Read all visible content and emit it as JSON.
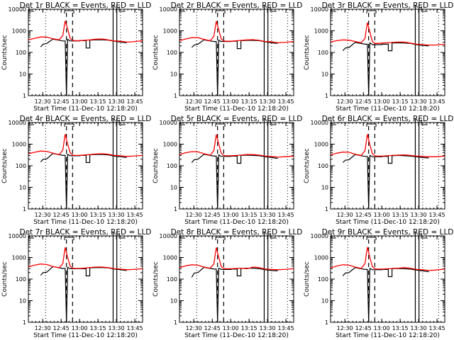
{
  "chart_data": {
    "type": "line",
    "layout": "3x3 grid",
    "shared": {
      "xlabel": "Start Time (11-Dec-10 12:18:20)",
      "ylabel": "Counts/sec",
      "yscale": "log",
      "ylim": [
        1,
        10000
      ],
      "ytick_labels": [
        "1",
        "10",
        "100",
        "1000",
        "10000"
      ],
      "yticks": [
        1,
        10,
        100,
        1000,
        10000
      ],
      "xlim_minutes_after_start": [
        0,
        93
      ],
      "xtick_labels": [
        "12:30",
        "12:45",
        "13:00",
        "13:15",
        "13:30",
        "13:45"
      ],
      "xticks_minutes_after_start": [
        11.67,
        26.67,
        41.67,
        56.67,
        71.67,
        86.67
      ],
      "series_names": [
        "Events",
        "LLD"
      ],
      "series_colors": {
        "Events": "#000000",
        "LLD": "#ff0000"
      },
      "dotted_vlines_min": [
        14,
        75,
        88
      ],
      "dashed_vlines_min": [
        31,
        36
      ],
      "solid_vlines_min": [
        69,
        72
      ]
    },
    "panels": [
      {
        "title": "Det 1r BLACK = Events, RED = LLD",
        "lld": {
          "x": [
            0,
            5,
            10,
            15,
            20,
            25,
            28,
            30,
            32,
            34,
            36,
            38,
            42,
            50,
            55,
            60,
            65,
            70,
            75,
            80,
            85,
            93
          ],
          "y": [
            380,
            450,
            520,
            510,
            430,
            380,
            600,
            2900,
            1200,
            450,
            360,
            350,
            350,
            380,
            410,
            420,
            380,
            340,
            330,
            300,
            310,
            350
          ]
        },
        "events": {
          "x": [
            10,
            12,
            12,
            15,
            15,
            20,
            28,
            30,
            31,
            32,
            34,
            42,
            42,
            47,
            47,
            50,
            50,
            55,
            60,
            65,
            70,
            75,
            80
          ],
          "y": [
            180,
            240,
            240,
            260,
            260,
            410,
            340,
            340,
            0,
            400,
            340,
            340,
            350,
            350,
            160,
            160,
            370,
            380,
            380,
            370,
            330,
            300,
            280
          ]
        }
      },
      {
        "title": "Det 2r BLACK = Events, RED = LLD",
        "lld": {
          "x": [
            0,
            5,
            10,
            15,
            20,
            25,
            28,
            30,
            32,
            34,
            36,
            38,
            42,
            50,
            55,
            60,
            65,
            70,
            75,
            80,
            85,
            93
          ],
          "y": [
            350,
            420,
            480,
            480,
            400,
            350,
            560,
            2800,
            1100,
            420,
            340,
            330,
            330,
            360,
            380,
            390,
            360,
            320,
            310,
            280,
            290,
            320
          ]
        },
        "events": {
          "x": [
            10,
            12,
            12,
            15,
            15,
            20,
            28,
            30,
            31,
            32,
            34,
            42,
            42,
            47,
            47,
            50,
            50,
            55,
            60,
            65,
            70,
            75,
            80
          ],
          "y": [
            170,
            220,
            220,
            240,
            240,
            380,
            320,
            320,
            0,
            370,
            320,
            320,
            330,
            330,
            150,
            150,
            350,
            360,
            360,
            350,
            310,
            280,
            260
          ]
        }
      },
      {
        "title": "Det 3r BLACK = Events, RED = LLD",
        "lld": {
          "x": [
            0,
            5,
            10,
            15,
            20,
            25,
            28,
            30,
            32,
            34,
            36,
            38,
            42,
            50,
            55,
            60,
            65,
            70,
            75,
            80,
            85,
            93
          ],
          "y": [
            300,
            350,
            380,
            370,
            320,
            280,
            450,
            2400,
            900,
            320,
            260,
            260,
            270,
            290,
            300,
            300,
            270,
            240,
            230,
            220,
            220,
            240
          ]
        },
        "events": {
          "x": [
            10,
            12,
            12,
            15,
            15,
            20,
            28,
            30,
            31,
            32,
            34,
            42,
            42,
            47,
            47,
            50,
            50,
            55,
            60,
            65,
            70,
            75,
            80
          ],
          "y": [
            120,
            160,
            160,
            170,
            170,
            290,
            240,
            240,
            0,
            280,
            230,
            230,
            240,
            240,
            120,
            120,
            270,
            280,
            270,
            260,
            230,
            210,
            200
          ]
        }
      },
      {
        "title": "Det 4r BLACK = Events, RED = LLD",
        "lld": {
          "x": [
            0,
            5,
            10,
            15,
            20,
            25,
            28,
            30,
            32,
            34,
            36,
            38,
            42,
            50,
            55,
            60,
            65,
            70,
            75,
            80,
            85,
            93
          ],
          "y": [
            360,
            420,
            480,
            460,
            380,
            330,
            520,
            2900,
            1000,
            400,
            310,
            300,
            300,
            330,
            350,
            360,
            340,
            300,
            290,
            270,
            280,
            300
          ]
        },
        "events": {
          "x": [
            10,
            12,
            12,
            15,
            15,
            20,
            28,
            30,
            31,
            32,
            34,
            42,
            42,
            47,
            47,
            50,
            50,
            55,
            60,
            65,
            70,
            75,
            80
          ],
          "y": [
            150,
            200,
            200,
            210,
            210,
            370,
            300,
            300,
            0,
            340,
            290,
            290,
            300,
            300,
            140,
            140,
            320,
            330,
            330,
            320,
            280,
            260,
            240
          ]
        }
      },
      {
        "title": "Det 5r BLACK = Events, RED = LLD",
        "lld": {
          "x": [
            0,
            5,
            10,
            15,
            20,
            25,
            28,
            30,
            32,
            34,
            36,
            38,
            42,
            50,
            55,
            60,
            65,
            70,
            75,
            80,
            85,
            93
          ],
          "y": [
            330,
            400,
            450,
            440,
            360,
            310,
            500,
            2800,
            1000,
            380,
            300,
            290,
            290,
            310,
            330,
            330,
            310,
            280,
            270,
            250,
            260,
            280
          ]
        },
        "events": {
          "x": [
            10,
            12,
            12,
            15,
            15,
            20,
            28,
            30,
            31,
            32,
            34,
            42,
            42,
            47,
            47,
            50,
            50,
            55,
            60,
            65,
            70,
            75,
            80
          ],
          "y": [
            140,
            190,
            190,
            200,
            200,
            340,
            280,
            280,
            0,
            320,
            270,
            270,
            280,
            280,
            130,
            130,
            300,
            310,
            300,
            290,
            260,
            240,
            220
          ]
        }
      },
      {
        "title": "Det 6r BLACK = Events, RED = LLD",
        "lld": {
          "x": [
            0,
            5,
            10,
            15,
            20,
            25,
            28,
            30,
            32,
            34,
            36,
            38,
            42,
            50,
            55,
            60,
            65,
            70,
            75,
            80,
            85,
            93
          ],
          "y": [
            320,
            380,
            430,
            420,
            340,
            300,
            500,
            2900,
            950,
            360,
            290,
            280,
            280,
            300,
            310,
            320,
            300,
            280,
            270,
            260,
            260,
            280
          ]
        },
        "events": {
          "x": [
            10,
            12,
            12,
            15,
            15,
            20,
            28,
            30,
            31,
            32,
            34,
            42,
            42,
            47,
            47,
            50,
            50,
            55,
            60,
            65,
            70,
            75,
            80
          ],
          "y": [
            140,
            180,
            180,
            190,
            190,
            330,
            270,
            270,
            0,
            300,
            260,
            260,
            270,
            270,
            130,
            130,
            290,
            300,
            290,
            280,
            260,
            240,
            230
          ]
        }
      },
      {
        "title": "Det 7r BLACK = Events, RED = LLD",
        "lld": {
          "x": [
            0,
            5,
            10,
            15,
            20,
            25,
            28,
            30,
            32,
            34,
            36,
            38,
            42,
            50,
            55,
            60,
            65,
            70,
            75,
            80,
            85,
            93
          ],
          "y": [
            370,
            440,
            500,
            470,
            380,
            330,
            520,
            2900,
            1000,
            400,
            320,
            310,
            310,
            340,
            360,
            360,
            340,
            300,
            290,
            270,
            280,
            300
          ]
        },
        "events": {
          "x": [
            10,
            12,
            12,
            15,
            15,
            20,
            28,
            30,
            31,
            32,
            34,
            42,
            42,
            47,
            47,
            50,
            50,
            55,
            60,
            65,
            70,
            75,
            80
          ],
          "y": [
            150,
            200,
            200,
            210,
            210,
            380,
            310,
            310,
            0,
            350,
            300,
            300,
            300,
            300,
            140,
            140,
            330,
            340,
            340,
            330,
            290,
            270,
            250
          ]
        }
      },
      {
        "title": "Det 8r BLACK = Events, RED = LLD",
        "lld": {
          "x": [
            0,
            5,
            10,
            15,
            20,
            25,
            28,
            30,
            32,
            34,
            36,
            38,
            42,
            50,
            55,
            60,
            65,
            70,
            75,
            80,
            85,
            93
          ],
          "y": [
            340,
            410,
            460,
            440,
            360,
            320,
            500,
            2900,
            1000,
            380,
            310,
            300,
            300,
            320,
            300,
            360,
            340,
            290,
            280,
            270,
            280,
            300
          ]
        },
        "events": {
          "x": [
            10,
            12,
            12,
            15,
            15,
            20,
            28,
            30,
            31,
            32,
            34,
            42,
            42,
            47,
            47,
            50,
            50,
            55,
            60,
            65,
            70,
            75,
            80
          ],
          "y": [
            120,
            190,
            190,
            200,
            200,
            350,
            290,
            290,
            0,
            320,
            280,
            280,
            290,
            290,
            140,
            140,
            310,
            320,
            320,
            300,
            270,
            250,
            240
          ]
        }
      },
      {
        "title": "Det 9r BLACK = Events, RED = LLD",
        "lld": {
          "x": [
            0,
            5,
            10,
            15,
            20,
            25,
            28,
            30,
            32,
            34,
            36,
            38,
            42,
            50,
            55,
            60,
            65,
            70,
            75,
            80,
            85,
            93
          ],
          "y": [
            330,
            400,
            460,
            440,
            360,
            310,
            520,
            3000,
            1000,
            380,
            300,
            290,
            290,
            310,
            320,
            340,
            320,
            280,
            270,
            250,
            260,
            290
          ]
        },
        "events": {
          "x": [
            10,
            12,
            12,
            15,
            15,
            20,
            28,
            30,
            31,
            32,
            34,
            42,
            42,
            47,
            47,
            50,
            50,
            55,
            60,
            65,
            70,
            75,
            80
          ],
          "y": [
            140,
            190,
            190,
            200,
            200,
            340,
            280,
            280,
            0,
            310,
            270,
            270,
            280,
            280,
            130,
            130,
            300,
            310,
            300,
            290,
            260,
            240,
            220
          ]
        }
      }
    ]
  }
}
